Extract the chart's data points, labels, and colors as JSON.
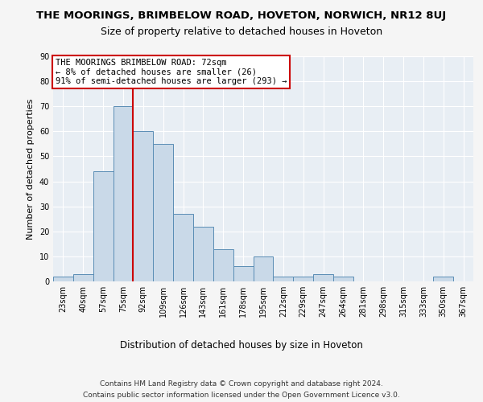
{
  "title": "THE MOORINGS, BRIMBELOW ROAD, HOVETON, NORWICH, NR12 8UJ",
  "subtitle": "Size of property relative to detached houses in Hoveton",
  "xlabel": "Distribution of detached houses by size in Hoveton",
  "ylabel": "Number of detached properties",
  "categories": [
    "23sqm",
    "40sqm",
    "57sqm",
    "75sqm",
    "92sqm",
    "109sqm",
    "126sqm",
    "143sqm",
    "161sqm",
    "178sqm",
    "195sqm",
    "212sqm",
    "229sqm",
    "247sqm",
    "264sqm",
    "281sqm",
    "298sqm",
    "315sqm",
    "333sqm",
    "350sqm",
    "367sqm"
  ],
  "values": [
    2,
    3,
    44,
    70,
    60,
    55,
    27,
    22,
    13,
    6,
    10,
    2,
    2,
    3,
    2,
    0,
    0,
    0,
    0,
    2,
    0
  ],
  "bar_color": "#c9d9e8",
  "bar_edge_color": "#5a8db5",
  "vline_x": 3.5,
  "vline_color": "#cc0000",
  "annotation_text": "THE MOORINGS BRIMBELOW ROAD: 72sqm\n← 8% of detached houses are smaller (26)\n91% of semi-detached houses are larger (293) →",
  "annotation_box_color": "#ffffff",
  "annotation_box_edge_color": "#cc0000",
  "ylim": [
    0,
    90
  ],
  "yticks": [
    0,
    10,
    20,
    30,
    40,
    50,
    60,
    70,
    80,
    90
  ],
  "footnote1": "Contains HM Land Registry data © Crown copyright and database right 2024.",
  "footnote2": "Contains public sector information licensed under the Open Government Licence v3.0.",
  "plot_bg_color": "#e8eef4",
  "fig_bg_color": "#f5f5f5",
  "grid_color": "#ffffff",
  "title_fontsize": 9.5,
  "subtitle_fontsize": 9,
  "ylabel_fontsize": 8,
  "footnote_fontsize": 6.5,
  "tick_fontsize": 7,
  "annot_fontsize": 7.5
}
